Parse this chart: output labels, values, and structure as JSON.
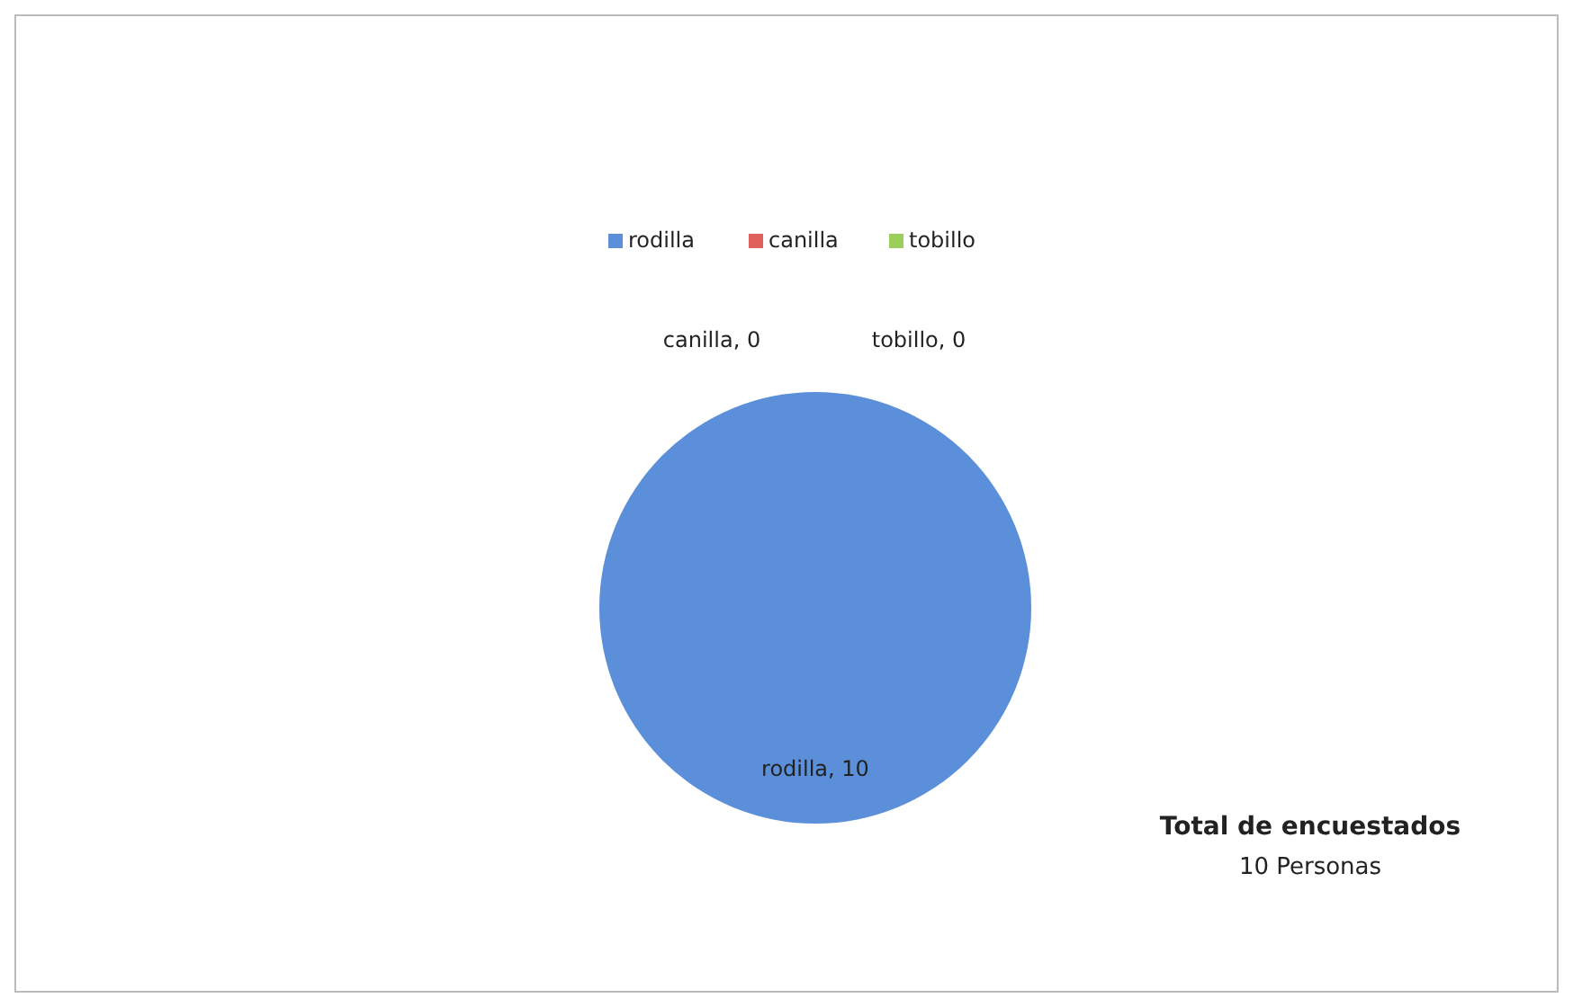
{
  "chart_data": {
    "type": "pie",
    "categories": [
      "rodilla",
      "canilla",
      "tobillo"
    ],
    "values": [
      10,
      0,
      0
    ],
    "colors": [
      "#5b8fd9",
      "#e0605c",
      "#9ccf5a"
    ],
    "value_labels": [
      "rodilla, 10",
      "canilla, 0",
      "tobillo, 0"
    ],
    "legend": "top",
    "annotations": [
      "Total de encuestados",
      "10 Personas"
    ]
  }
}
